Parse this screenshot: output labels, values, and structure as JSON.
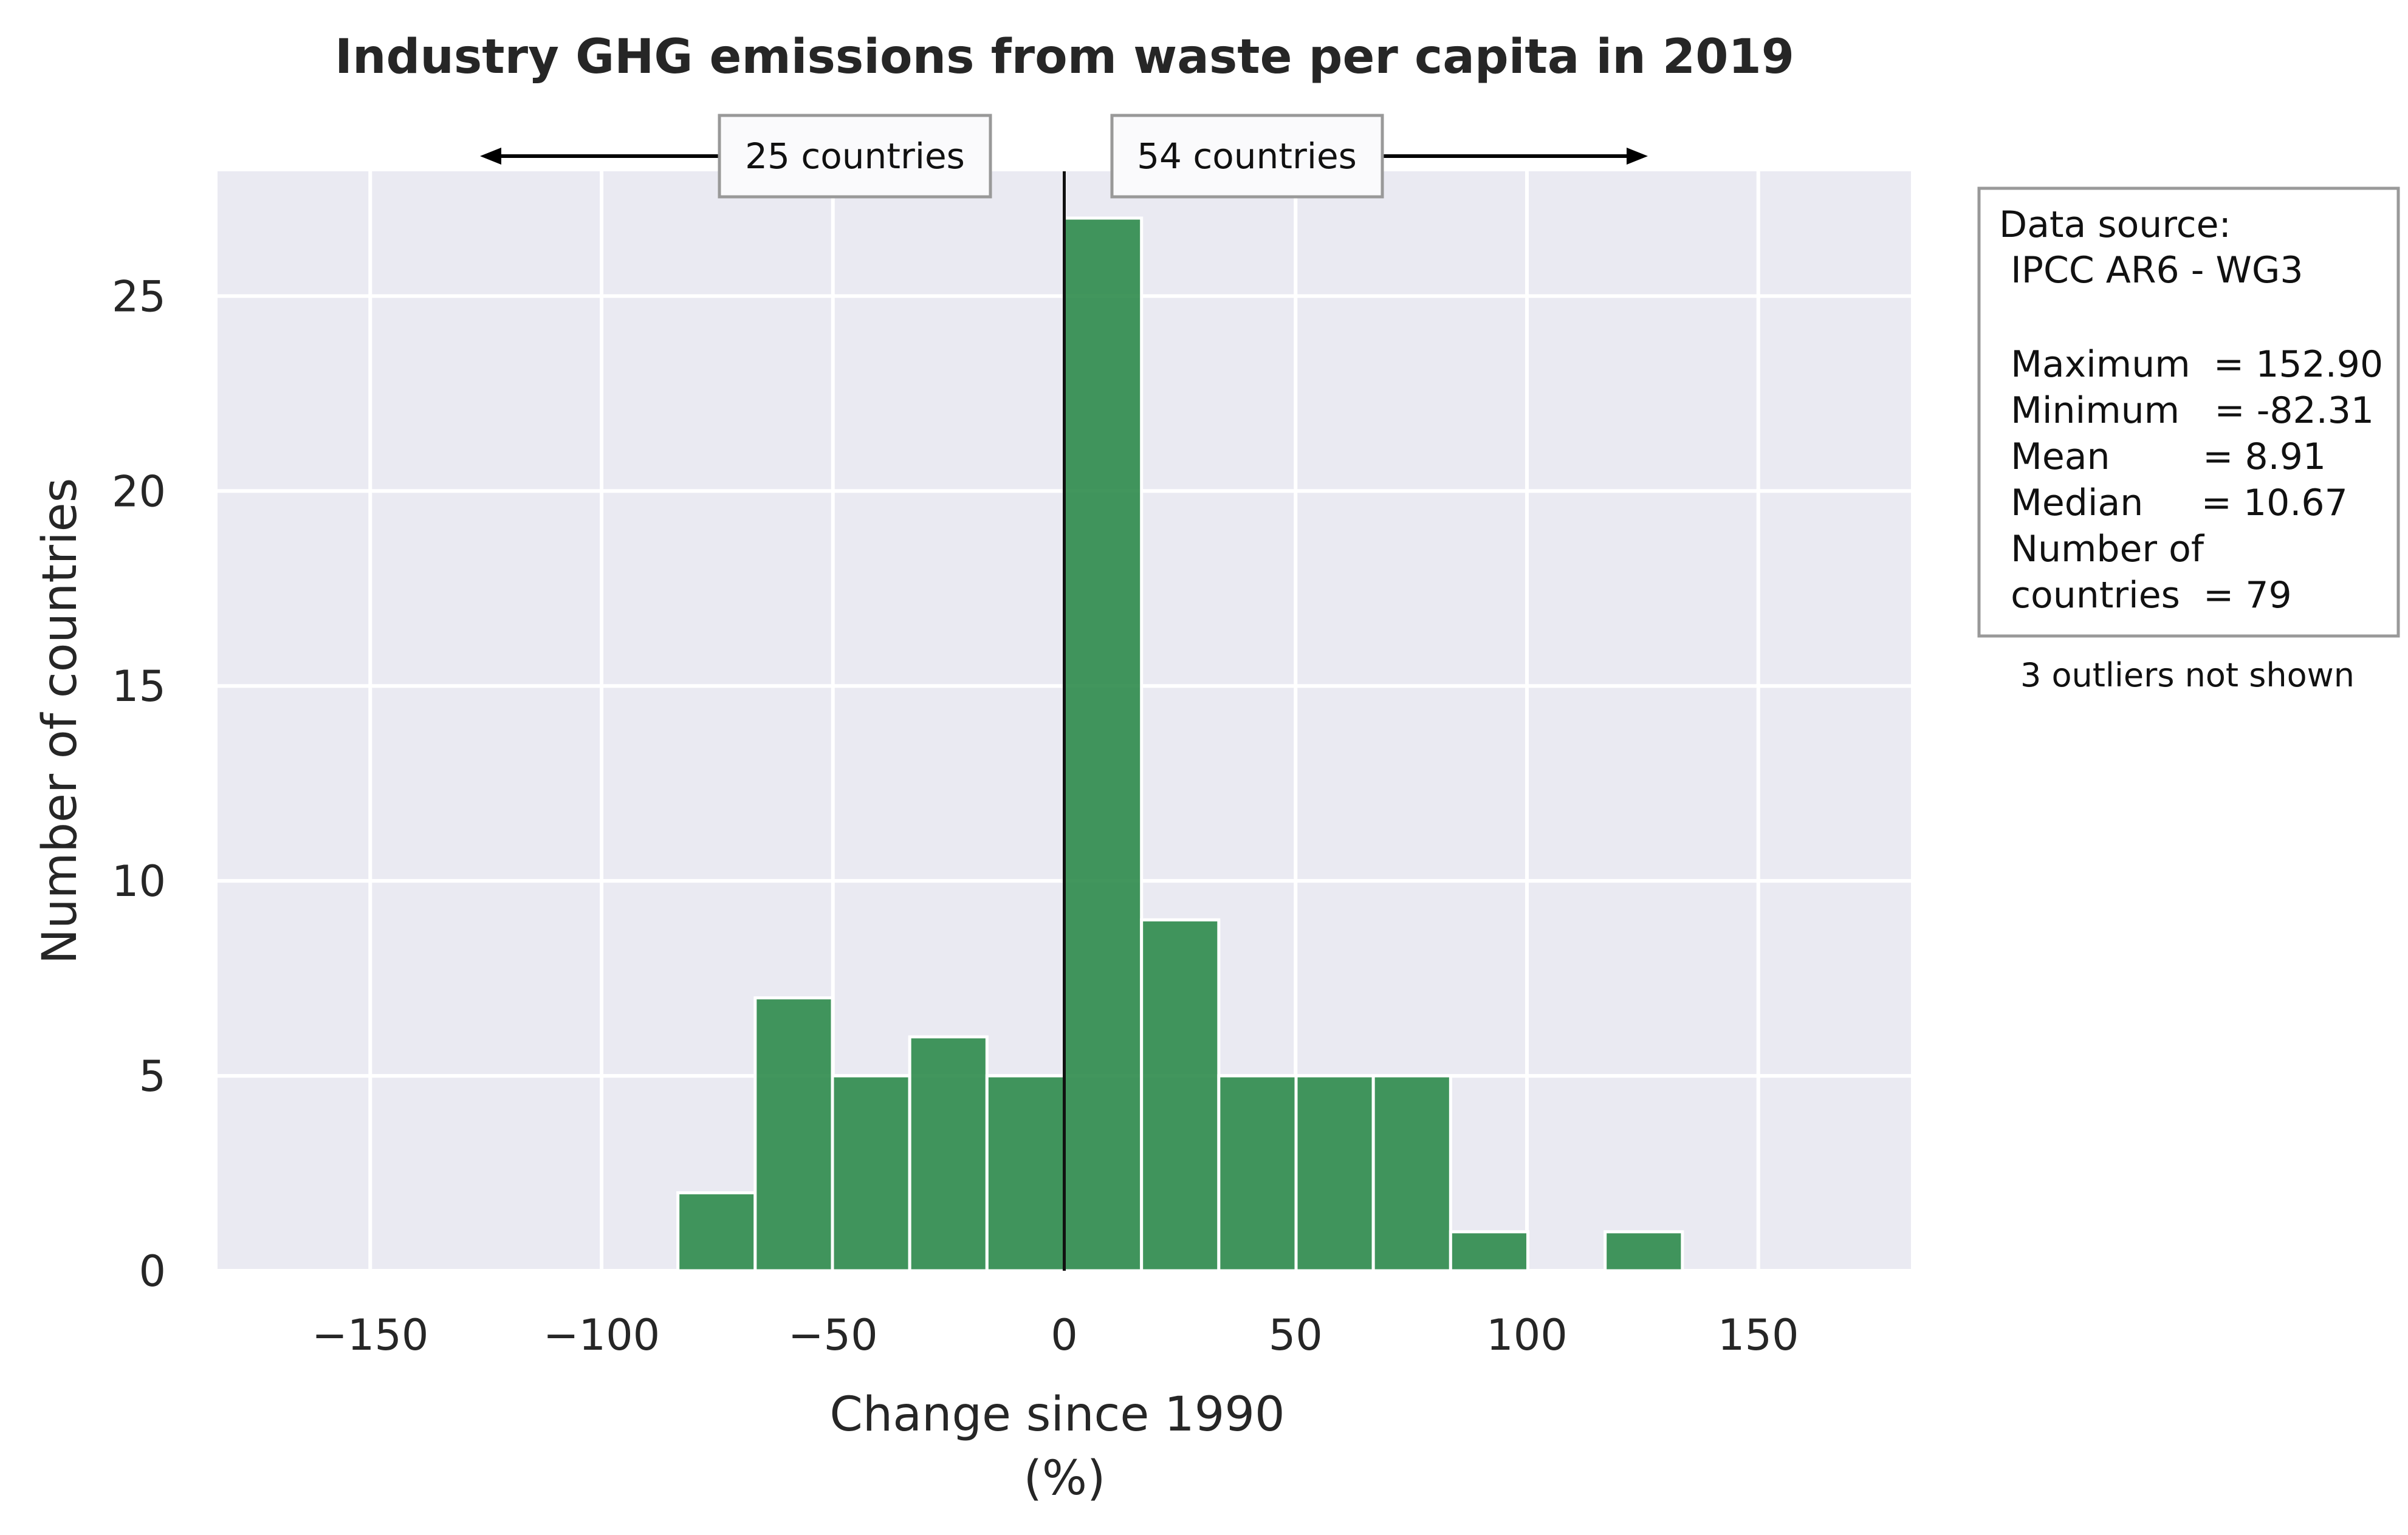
{
  "chart_data": {
    "type": "bar",
    "title": "Industry GHG emissions from waste per capita in 2019",
    "xlabel_line1": "Change since 1990",
    "xlabel_line2": "(%)",
    "ylabel": "Number of countries",
    "xlim": [
      -183,
      183
    ],
    "ylim": [
      0,
      28.2
    ],
    "xticks": [
      -150,
      -100,
      -50,
      0,
      50,
      100,
      150
    ],
    "xtick_labels": [
      "−150",
      "−100",
      "−50",
      "0",
      "50",
      "100",
      "150"
    ],
    "yticks": [
      0,
      5,
      10,
      15,
      20,
      25
    ],
    "ytick_labels": [
      "0",
      "5",
      "10",
      "15",
      "20",
      "25"
    ],
    "grid": true,
    "bins": [
      {
        "x0": -83.5,
        "x1": -66.8,
        "count": 2
      },
      {
        "x0": -66.8,
        "x1": -50.1,
        "count": 7
      },
      {
        "x0": -50.1,
        "x1": -33.4,
        "count": 5
      },
      {
        "x0": -33.4,
        "x1": -16.7,
        "count": 6
      },
      {
        "x0": -16.7,
        "x1": 0,
        "count": 5
      },
      {
        "x0": 0,
        "x1": 16.7,
        "count": 27
      },
      {
        "x0": 16.7,
        "x1": 33.4,
        "count": 9
      },
      {
        "x0": 33.4,
        "x1": 50.1,
        "count": 5
      },
      {
        "x0": 50.1,
        "x1": 66.8,
        "count": 5
      },
      {
        "x0": 66.8,
        "x1": 83.5,
        "count": 5
      },
      {
        "x0": 83.5,
        "x1": 100.2,
        "count": 1
      },
      {
        "x0": 116.9,
        "x1": 133.6,
        "count": 1
      }
    ],
    "reference_line_x": 0,
    "left_annotation": "25 countries",
    "right_annotation": "54 countries",
    "colors": {
      "bar": "#2e8b4b",
      "bar_edge": "#ffffff",
      "plot_background": "#eaeaf2",
      "grid": "#ffffff",
      "reference_line": "#111111",
      "box_border": "#999999"
    }
  },
  "stats_box": {
    "lines": [
      "Data source:",
      " IPCC AR6 - WG3",
      "",
      " Maximum  = 152.90",
      " Minimum   = -82.31",
      " Mean        = 8.91",
      " Median     = 10.67",
      " Number of",
      " countries  = 79"
    ],
    "note": "3 outliers not shown"
  }
}
